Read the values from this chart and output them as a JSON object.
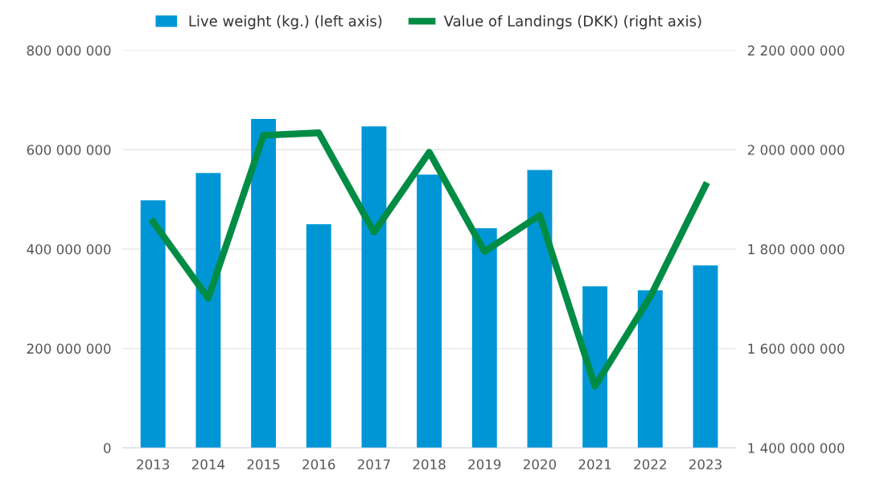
{
  "chart_data": {
    "type": "bar",
    "categories": [
      "2013",
      "2014",
      "2015",
      "2016",
      "2017",
      "2018",
      "2019",
      "2020",
      "2021",
      "2022",
      "2023"
    ],
    "series": [
      {
        "name": "Live weight (kg.) (left axis)",
        "color": "#0096d6",
        "values": [
          498000000,
          553000000,
          662000000,
          450000000,
          647000000,
          550000000,
          442000000,
          559000000,
          325000000,
          317000000,
          367000000
        ]
      },
      {
        "name": "Value of Landings (DKK) (right axis)",
        "type": "line",
        "axis": "y2",
        "color": "#008c45",
        "values": [
          1855000000,
          1701000000,
          2029000000,
          2034000000,
          1834000000,
          1995000000,
          1795000000,
          1868000000,
          1524000000,
          1704000000,
          1928000000
        ]
      }
    ],
    "ylim": [
      0,
      800000000
    ],
    "yticks": [
      0,
      {
        "value": 200000000,
        "label": "200 000 000"
      },
      {
        "value": 400000000,
        "label": "400 000 000"
      },
      {
        "value": 600000000,
        "label": "600 000 000"
      },
      {
        "value": 800000000,
        "label": "800 000 000"
      }
    ],
    "y2lim": [
      1400000000,
      2200000000
    ],
    "y2ticks": [
      {
        "value": 1400000000,
        "label": "1 400 000 000"
      },
      {
        "value": 1600000000,
        "label": "1 600 000 000"
      },
      {
        "value": 1800000000,
        "label": "1 800 000 000"
      },
      {
        "value": 2000000000,
        "label": "2 000 000 000"
      },
      {
        "value": 2200000000,
        "label": "2 200 000 000"
      }
    ],
    "grid": "y",
    "legend": "top",
    "marker": "none",
    "line_style": "solid"
  }
}
